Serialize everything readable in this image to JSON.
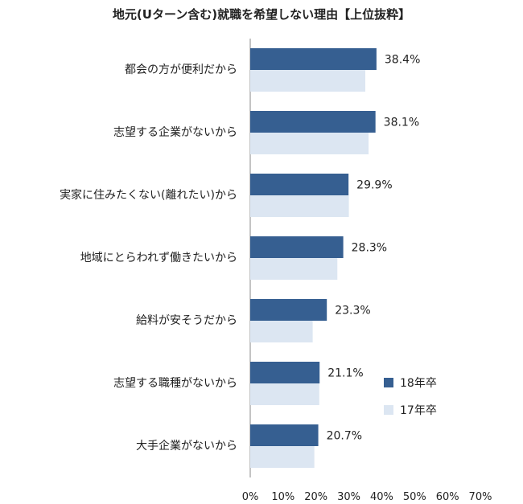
{
  "chart_data": {
    "type": "bar",
    "orientation": "horizontal",
    "title": "地元(Uターン含む)就職を希望しない理由【上位抜粋】",
    "categories": [
      "都会の方が便利だから",
      "志望する企業がないから",
      "実家に住みたくない(離れたい)から",
      "地域にとらわれず働きたいから",
      "給料が安そうだから",
      "志望する職種がないから",
      "大手企業がないから"
    ],
    "series": [
      {
        "name": "18年卒",
        "color": "#365f91",
        "values": [
          38.4,
          38.1,
          29.9,
          28.3,
          23.3,
          21.1,
          20.7
        ],
        "labels": [
          "38.4%",
          "38.1%",
          "29.9%",
          "28.3%",
          "23.3%",
          "21.1%",
          "20.7%"
        ]
      },
      {
        "name": "17年卒",
        "color": "#dce6f2",
        "values": [
          35.0,
          36.0,
          30.0,
          26.5,
          19.0,
          21.0,
          19.5
        ]
      }
    ],
    "xlim": [
      0,
      70
    ],
    "xticks": [
      "0%",
      "10%",
      "20%",
      "30%",
      "40%",
      "50%",
      "60%",
      "70%"
    ],
    "xtick_values": [
      0,
      10,
      20,
      30,
      40,
      50,
      60,
      70
    ],
    "grid": false,
    "legend_position": "right"
  }
}
